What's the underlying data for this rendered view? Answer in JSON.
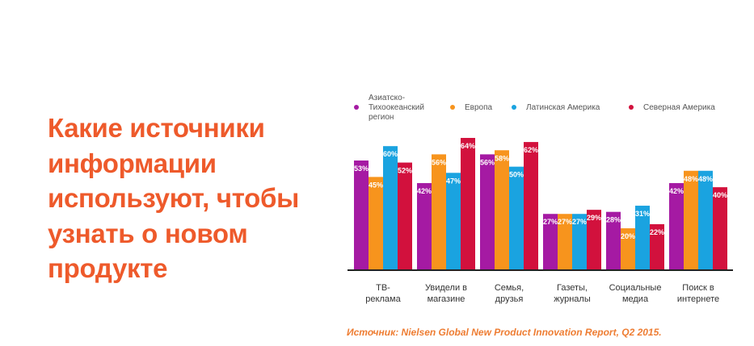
{
  "headline": {
    "lines": [
      "Какие источники",
      "информации",
      "используют, чтобы",
      "узнать о новом",
      "продукте"
    ]
  },
  "source": "Источник: Nielsen Global New Product Innovation Report, Q2  2015.",
  "colors": {
    "headline": "#ee5a2b",
    "source": "#ee7d33",
    "axis": "#222222"
  },
  "chart_data": {
    "type": "bar",
    "categories": [
      [
        "ТВ-",
        "реклама"
      ],
      [
        "Увидели в",
        "магазине"
      ],
      [
        "Семья,",
        "друзья"
      ],
      [
        "Газеты,",
        "журналы"
      ],
      [
        "Социальные",
        "медиа"
      ],
      [
        "Поиск в",
        "интернете"
      ]
    ],
    "series": [
      {
        "name": [
          "Азиатско-",
          "Тихоокеанский",
          "регион"
        ],
        "color": "#a51aa3",
        "values": [
          53,
          42,
          56,
          27,
          28,
          42
        ]
      },
      {
        "name": [
          "Европа"
        ],
        "color": "#f7941d",
        "values": [
          45,
          56,
          58,
          27,
          20,
          48
        ]
      },
      {
        "name": [
          "Латинская  Америка"
        ],
        "color": "#1aa3e0",
        "values": [
          60,
          47,
          50,
          27,
          31,
          48
        ]
      },
      {
        "name": [
          "Северная  Америка"
        ],
        "color": "#d2113d",
        "values": [
          52,
          64,
          62,
          29,
          22,
          40
        ]
      }
    ],
    "ylim": [
      0,
      64
    ],
    "legend_position": "top",
    "grid": false
  }
}
